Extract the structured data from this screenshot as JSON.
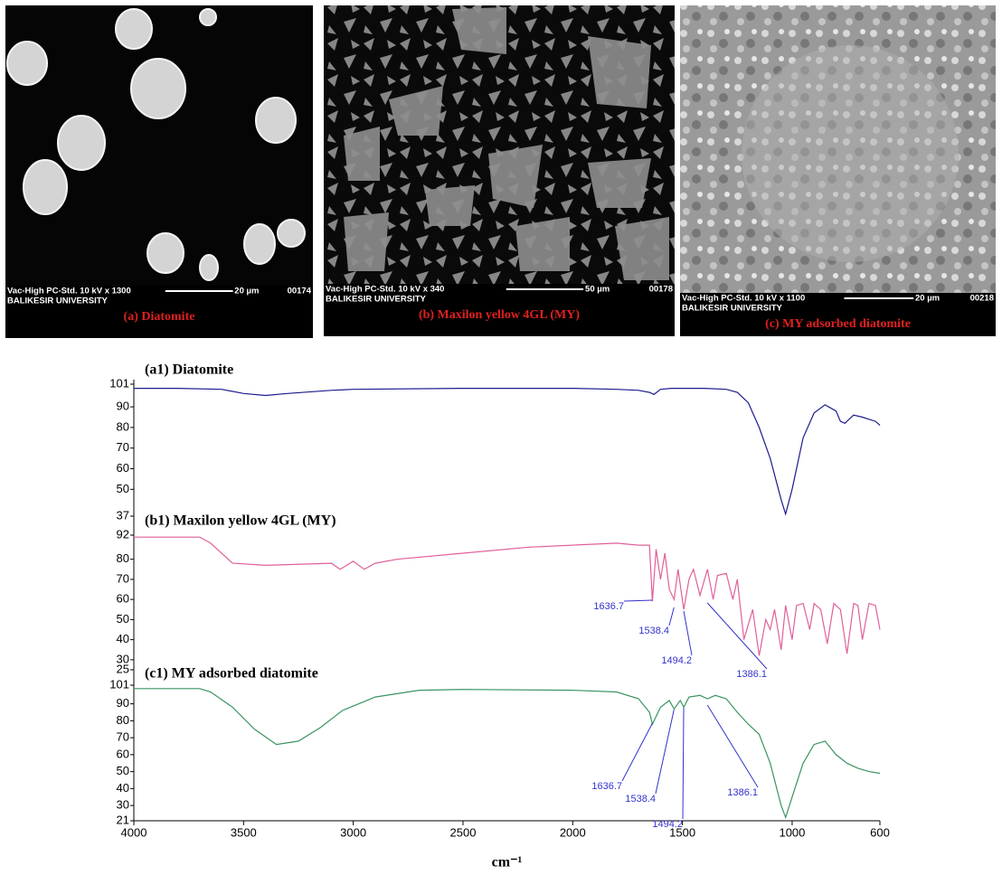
{
  "sem_panels": [
    {
      "info": "Vac-High   PC-Std.  10 kV  x 1300",
      "scale": "20 µm",
      "code": "00174",
      "institution": "BALIKESIR UNIVERSITY",
      "caption": "(a) Diatomite"
    },
    {
      "info": "Vac-High   PC-Std.  10 kV  x 340",
      "scale": "50 µm",
      "code": "00178",
      "institution": "BALIKESIR UNIVERSITY",
      "caption": "(b) Maxilon yellow 4GL (MY)"
    },
    {
      "info": "Vac-High   PC-Std.  10 kV  x 1100",
      "scale": "20 µm",
      "code": "00218",
      "institution": "BALIKESIR UNIVERSITY",
      "caption": "(c) MY adsorbed diatomite"
    }
  ],
  "chart_data": [
    {
      "type": "line",
      "title": "(a1) Diatomite",
      "color": "#1c1c8e",
      "x": [
        4000,
        3800,
        3600,
        3500,
        3400,
        3300,
        3100,
        3000,
        2500,
        2000,
        1800,
        1700,
        1650,
        1630,
        1600,
        1550,
        1400,
        1300,
        1250,
        1200,
        1150,
        1100,
        1050,
        1030,
        1000,
        950,
        900,
        850,
        800,
        780,
        760,
        720,
        680,
        620,
        600
      ],
      "values": [
        99,
        99,
        98.5,
        96.5,
        95.5,
        96.5,
        98,
        98.5,
        99,
        99,
        98.5,
        98,
        97,
        96,
        98.5,
        99,
        99,
        98.5,
        97,
        92,
        80,
        65,
        45,
        38,
        50,
        75,
        87,
        91,
        88,
        83,
        82,
        86,
        85,
        83,
        81
      ],
      "xlim": [
        4000,
        600
      ],
      "ylim": [
        37,
        101
      ],
      "yticks": [
        101,
        90,
        80,
        70,
        60,
        50,
        37
      ]
    },
    {
      "type": "line",
      "title": "(b1) Maxilon yellow 4GL (MY)",
      "color": "#e0609a",
      "x": [
        4000,
        3700,
        3650,
        3550,
        3400,
        3100,
        3060,
        3000,
        2950,
        2900,
        2800,
        2500,
        2200,
        2000,
        1800,
        1700,
        1650,
        1637,
        1620,
        1600,
        1580,
        1560,
        1538,
        1520,
        1494,
        1470,
        1450,
        1420,
        1386,
        1360,
        1340,
        1300,
        1270,
        1250,
        1220,
        1180,
        1150,
        1120,
        1100,
        1080,
        1050,
        1030,
        1000,
        980,
        950,
        920,
        900,
        870,
        840,
        810,
        780,
        750,
        720,
        700,
        680,
        650,
        620,
        600
      ],
      "values": [
        91,
        91,
        88,
        78,
        77,
        78,
        75,
        79,
        75,
        78,
        80,
        83,
        86,
        87,
        88,
        87,
        87,
        59,
        85,
        70,
        83,
        65,
        60,
        75,
        55,
        70,
        75,
        62,
        75,
        60,
        72,
        73,
        60,
        70,
        40,
        55,
        32,
        50,
        45,
        55,
        35,
        57,
        40,
        57,
        58,
        45,
        58,
        55,
        38,
        58,
        55,
        33,
        58,
        57,
        40,
        58,
        57,
        45
      ],
      "peak_labels": [
        1636.7,
        1538.4,
        1494.2,
        1386.1
      ],
      "xlim": [
        4000,
        600
      ],
      "ylim": [
        25,
        92
      ],
      "yticks": [
        92,
        80,
        70,
        60,
        50,
        40,
        30,
        25
      ]
    },
    {
      "type": "line",
      "title": "(c1) MY adsorbed diatomite",
      "color": "#3a9460",
      "x": [
        4000,
        3700,
        3650,
        3550,
        3450,
        3350,
        3250,
        3150,
        3050,
        2900,
        2700,
        2500,
        2000,
        1800,
        1700,
        1650,
        1637,
        1600,
        1560,
        1538,
        1510,
        1494,
        1470,
        1420,
        1386,
        1350,
        1300,
        1250,
        1200,
        1150,
        1100,
        1050,
        1030,
        1000,
        950,
        900,
        850,
        800,
        750,
        700,
        650,
        600
      ],
      "values": [
        99,
        99,
        97,
        88,
        75,
        66,
        68,
        76,
        86,
        94,
        98,
        98.5,
        98,
        97,
        93,
        85,
        78,
        88,
        92,
        87,
        92,
        88,
        94,
        95,
        93,
        95,
        93,
        85,
        78,
        72,
        55,
        30,
        23,
        35,
        55,
        66,
        68,
        60,
        55,
        52,
        50,
        49
      ],
      "peak_labels": [
        1636.7,
        1538.4,
        1494.2,
        1386.1
      ],
      "xlim": [
        4000,
        600
      ],
      "ylim": [
        21,
        101
      ],
      "yticks": [
        101,
        90,
        80,
        70,
        60,
        50,
        40,
        30,
        21
      ],
      "xticks": [
        4000,
        3500,
        3000,
        2500,
        2000,
        1500,
        1000,
        600
      ],
      "xlabel": "cm⁻¹"
    }
  ]
}
